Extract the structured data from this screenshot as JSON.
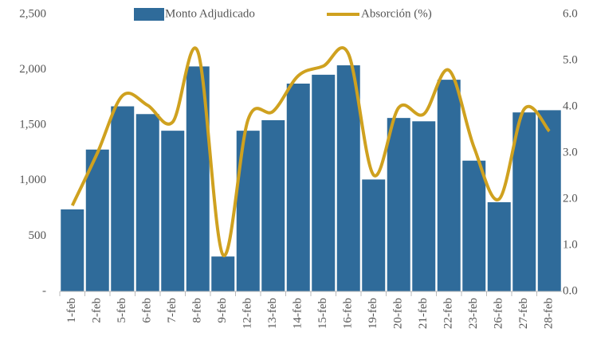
{
  "chart_data": {
    "type": "bar-line",
    "categories": [
      "1-feb",
      "2-feb",
      "5-feb",
      "6-feb",
      "7-feb",
      "8-feb",
      "9-feb",
      "12-feb",
      "13-feb",
      "14-feb",
      "15-feb",
      "16-feb",
      "19-feb",
      "20-feb",
      "21-feb",
      "22-feb",
      "23-feb",
      "26-feb",
      "27-feb",
      "28-feb"
    ],
    "series": [
      {
        "name": "Monto Adjudicado",
        "type": "bar",
        "color": "#2f6b9a",
        "values": [
          740,
          1280,
          1670,
          1600,
          1450,
          2030,
          315,
          1450,
          1545,
          1875,
          1955,
          2040,
          1010,
          1565,
          1535,
          1910,
          1180,
          805,
          1615,
          1635
        ]
      },
      {
        "name": "Absorción (%)",
        "type": "line",
        "axis": "y2",
        "color": "#cfa11f",
        "values": [
          1.86,
          3.0,
          4.24,
          4.03,
          3.67,
          5.19,
          0.79,
          3.72,
          3.9,
          4.67,
          4.88,
          5.14,
          2.52,
          3.98,
          3.84,
          4.79,
          3.12,
          2.0,
          3.95,
          3.47
        ]
      }
    ],
    "ylim": [
      0,
      2500
    ],
    "yticks": [
      {
        "value": 0,
        "label": "-"
      },
      500,
      {
        "value": 1000,
        "label": "1,000"
      },
      {
        "value": 1500,
        "label": "1,500"
      },
      {
        "value": 2000,
        "label": "2,000"
      },
      {
        "value": 2500,
        "label": "2,500"
      }
    ],
    "y2lim": [
      0,
      6
    ],
    "y2ticks": [
      {
        "value": 0,
        "label": "0.0"
      },
      {
        "value": 1,
        "label": "1.0"
      },
      {
        "value": 2,
        "label": "2.0"
      },
      {
        "value": 3,
        "label": "3.0"
      },
      {
        "value": 4,
        "label": "4.0"
      },
      {
        "value": 5,
        "label": "5.0"
      },
      {
        "value": 6,
        "label": "6.0"
      }
    ],
    "grid": false,
    "legend": "top"
  }
}
